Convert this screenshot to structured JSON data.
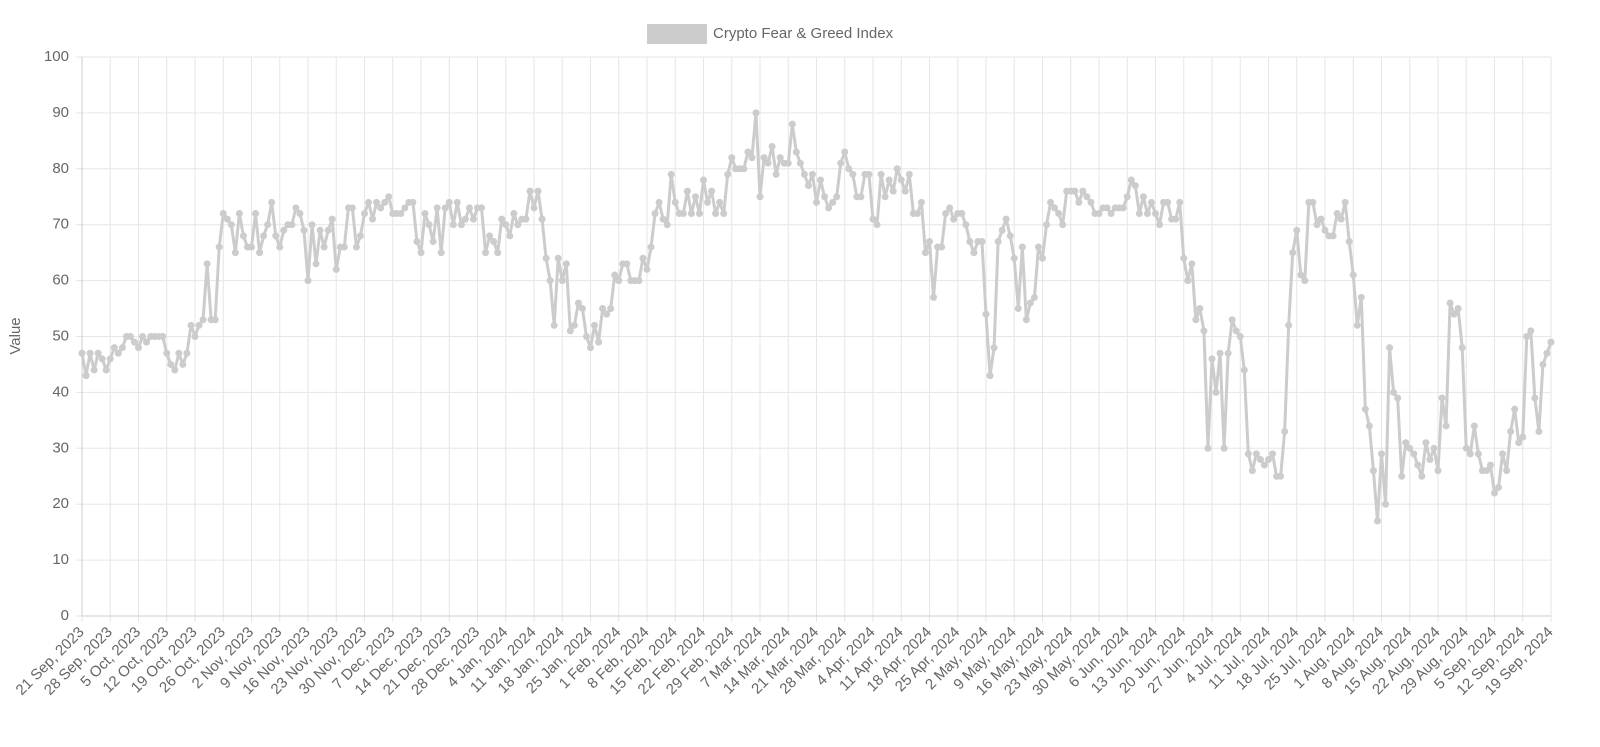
{
  "chart_data": {
    "type": "line",
    "y_label": "Value",
    "legend": "top",
    "grid": true,
    "ylim": [
      0,
      100
    ],
    "yticks": [
      0,
      10,
      20,
      30,
      40,
      50,
      60,
      70,
      80,
      90,
      100
    ],
    "categories": [
      "21 Sep, 2023",
      null,
      null,
      null,
      null,
      null,
      null,
      "28 Sep, 2023",
      null,
      null,
      null,
      null,
      null,
      null,
      "5 Oct, 2023",
      null,
      null,
      null,
      null,
      null,
      null,
      "12 Oct, 2023",
      null,
      null,
      null,
      null,
      null,
      null,
      "19 Oct, 2023",
      null,
      null,
      null,
      null,
      null,
      null,
      "26 Oct, 2023",
      null,
      null,
      null,
      null,
      null,
      null,
      "2 Nov, 2023",
      null,
      null,
      null,
      null,
      null,
      null,
      "9 Nov, 2023",
      null,
      null,
      null,
      null,
      null,
      null,
      "16 Nov, 2023",
      null,
      null,
      null,
      null,
      null,
      null,
      "23 Nov, 2023",
      null,
      null,
      null,
      null,
      null,
      null,
      "30 Nov, 2023",
      null,
      null,
      null,
      null,
      null,
      null,
      "7 Dec, 2023",
      null,
      null,
      null,
      null,
      null,
      null,
      "14 Dec, 2023",
      null,
      null,
      null,
      null,
      null,
      null,
      "21 Dec, 2023",
      null,
      null,
      null,
      null,
      null,
      null,
      "28 Dec, 2023",
      null,
      null,
      null,
      null,
      null,
      null,
      "4 Jan, 2024",
      null,
      null,
      null,
      null,
      null,
      null,
      "11 Jan, 2024",
      null,
      null,
      null,
      null,
      null,
      null,
      "18 Jan, 2024",
      null,
      null,
      null,
      null,
      null,
      null,
      "25 Jan, 2024",
      null,
      null,
      null,
      null,
      null,
      null,
      "1 Feb, 2024",
      null,
      null,
      null,
      null,
      null,
      null,
      "8 Feb, 2024",
      null,
      null,
      null,
      null,
      null,
      null,
      "15 Feb, 2024",
      null,
      null,
      null,
      null,
      null,
      null,
      "22 Feb, 2024",
      null,
      null,
      null,
      null,
      null,
      null,
      "29 Feb, 2024",
      null,
      null,
      null,
      null,
      null,
      null,
      "7 Mar, 2024",
      null,
      null,
      null,
      null,
      null,
      null,
      "14 Mar, 2024",
      null,
      null,
      null,
      null,
      null,
      null,
      "21 Mar, 2024",
      null,
      null,
      null,
      null,
      null,
      null,
      "28 Mar, 2024",
      null,
      null,
      null,
      null,
      null,
      null,
      "4 Apr, 2024",
      null,
      null,
      null,
      null,
      null,
      null,
      "11 Apr, 2024",
      null,
      null,
      null,
      null,
      null,
      null,
      "18 Apr, 2024",
      null,
      null,
      null,
      null,
      null,
      null,
      "25 Apr, 2024",
      null,
      null,
      null,
      null,
      null,
      null,
      "2 May, 2024",
      null,
      null,
      null,
      null,
      null,
      null,
      "9 May, 2024",
      null,
      null,
      null,
      null,
      null,
      null,
      "16 May, 2024",
      null,
      null,
      null,
      null,
      null,
      null,
      "23 May, 2024",
      null,
      null,
      null,
      null,
      null,
      null,
      "30 May, 2024",
      null,
      null,
      null,
      null,
      null,
      null,
      "6 Jun, 2024",
      null,
      null,
      null,
      null,
      null,
      null,
      "13 Jun, 2024",
      null,
      null,
      null,
      null,
      null,
      null,
      "20 Jun, 2024",
      null,
      null,
      null,
      null,
      null,
      null,
      "27 Jun, 2024",
      null,
      null,
      null,
      null,
      null,
      null,
      "4 Jul, 2024",
      null,
      null,
      null,
      null,
      null,
      null,
      "11 Jul, 2024",
      null,
      null,
      null,
      null,
      null,
      null,
      "18 Jul, 2024",
      null,
      null,
      null,
      null,
      null,
      null,
      "25 Jul, 2024",
      null,
      null,
      null,
      null,
      null,
      null,
      "1 Aug, 2024",
      null,
      null,
      null,
      null,
      null,
      null,
      "8 Aug, 2024",
      null,
      null,
      null,
      null,
      null,
      null,
      "15 Aug, 2024",
      null,
      null,
      null,
      null,
      null,
      null,
      "22 Aug, 2024",
      null,
      null,
      null,
      null,
      null,
      null,
      "29 Aug, 2024",
      null,
      null,
      null,
      null,
      null,
      null,
      "5 Sep, 2024",
      null,
      null,
      null,
      null,
      null,
      null,
      "12 Sep, 2024",
      null,
      null,
      null,
      null,
      null,
      null,
      "19 Sep, 2024"
    ],
    "series": [
      {
        "name": "Crypto Fear & Greed Index",
        "color": "#cccccc",
        "values": [
          47,
          43,
          47,
          44,
          47,
          46,
          44,
          46,
          48,
          47,
          48,
          50,
          50,
          49,
          48,
          50,
          49,
          50,
          50,
          50,
          50,
          47,
          45,
          44,
          47,
          45,
          47,
          52,
          50,
          52,
          53,
          63,
          53,
          53,
          66,
          72,
          71,
          70,
          65,
          72,
          68,
          66,
          66,
          72,
          65,
          68,
          70,
          74,
          68,
          66,
          69,
          70,
          70,
          73,
          72,
          69,
          60,
          70,
          63,
          69,
          66,
          69,
          71,
          62,
          66,
          66,
          73,
          73,
          66,
          68,
          72,
          74,
          71,
          74,
          73,
          74,
          75,
          72,
          72,
          72,
          73,
          74,
          74,
          67,
          65,
          72,
          70,
          67,
          73,
          65,
          73,
          74,
          70,
          74,
          70,
          71,
          73,
          71,
          73,
          73,
          65,
          68,
          67,
          65,
          71,
          70,
          68,
          72,
          70,
          71,
          71,
          76,
          73,
          76,
          71,
          64,
          60,
          52,
          64,
          60,
          63,
          51,
          52,
          56,
          55,
          50,
          48,
          52,
          49,
          55,
          54,
          55,
          61,
          60,
          63,
          63,
          60,
          60,
          60,
          64,
          62,
          66,
          72,
          74,
          71,
          70,
          79,
          74,
          72,
          72,
          76,
          72,
          75,
          72,
          78,
          74,
          76,
          72,
          74,
          72,
          79,
          82,
          80,
          80,
          80,
          83,
          82,
          90,
          75,
          82,
          81,
          84,
          79,
          82,
          81,
          81,
          88,
          83,
          81,
          79,
          77,
          79,
          74,
          78,
          75,
          73,
          74,
          75,
          81,
          83,
          80,
          79,
          75,
          75,
          79,
          79,
          71,
          70,
          79,
          75,
          78,
          76,
          80,
          78,
          76,
          79,
          72,
          72,
          74,
          65,
          67,
          57,
          66,
          66,
          72,
          73,
          71,
          72,
          72,
          70,
          67,
          65,
          67,
          67,
          54,
          43,
          48,
          67,
          69,
          71,
          68,
          64,
          55,
          66,
          53,
          56,
          57,
          66,
          64,
          70,
          74,
          73,
          72,
          70,
          76,
          76,
          76,
          74,
          76,
          75,
          74,
          72,
          72,
          73,
          73,
          72,
          73,
          73,
          73,
          75,
          78,
          77,
          72,
          75,
          72,
          74,
          72,
          70,
          74,
          74,
          71,
          71,
          74,
          64,
          60,
          63,
          53,
          55,
          51,
          30,
          46,
          40,
          47,
          30,
          47,
          53,
          51,
          50,
          44,
          29,
          26,
          29,
          28,
          27,
          28,
          29,
          25,
          25,
          33,
          52,
          65,
          69,
          61,
          60,
          74,
          74,
          70,
          71,
          69,
          68,
          68,
          72,
          71,
          74,
          67,
          61,
          52,
          57,
          37,
          34,
          26,
          17,
          29,
          20,
          48,
          40,
          39,
          25,
          31,
          30,
          29,
          27,
          25,
          31,
          28,
          30,
          26,
          39,
          34,
          56,
          54,
          55,
          48,
          30,
          29,
          34,
          29,
          26,
          26,
          27,
          22,
          23,
          29,
          26,
          33,
          37,
          31,
          32,
          50,
          51,
          39,
          33,
          45,
          47,
          49
        ]
      }
    ]
  }
}
